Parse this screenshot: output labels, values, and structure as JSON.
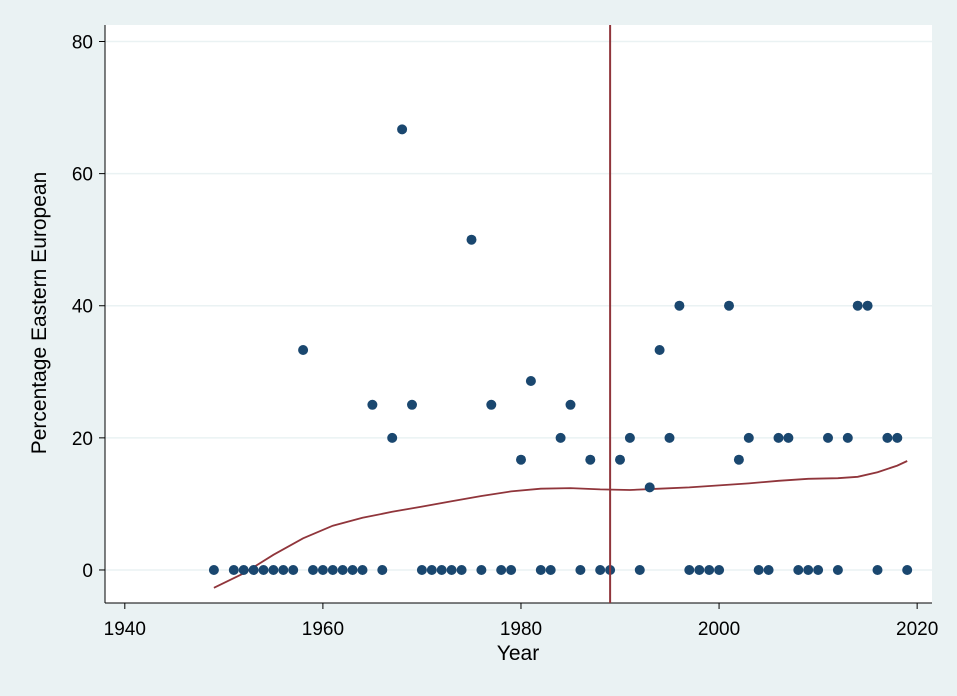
{
  "chart_data": {
    "type": "scatter",
    "title": "",
    "xlabel": "Year",
    "ylabel": "Percentage Eastern European",
    "xlim": [
      1938,
      2021.5
    ],
    "ylim": [
      -5,
      82.5
    ],
    "x_ticks": [
      1940,
      1960,
      1980,
      2000,
      2020
    ],
    "y_ticks": [
      0,
      20,
      40,
      60,
      80
    ],
    "x_tick_labels": [
      "1940",
      "1960",
      "1980",
      "2000",
      "2020"
    ],
    "y_tick_labels": [
      "0",
      "20",
      "40",
      "60",
      "80"
    ],
    "grid": "horizontal",
    "legend": "none",
    "vertical_line_x": 1989,
    "colors": {
      "background": "#eaf2f3",
      "plot_background": "#ffffff",
      "points": "#1a476f",
      "fit_line": "#90353b",
      "reference_line": "#90353b",
      "gridline": "#eaf2f3"
    },
    "series": [
      {
        "type": "scatter",
        "points": [
          [
            1949,
            0
          ],
          [
            1951,
            0
          ],
          [
            1952,
            0
          ],
          [
            1953,
            0
          ],
          [
            1954,
            0
          ],
          [
            1955,
            0
          ],
          [
            1956,
            0
          ],
          [
            1957,
            0
          ],
          [
            1958,
            33.3
          ],
          [
            1959,
            0
          ],
          [
            1960,
            0
          ],
          [
            1961,
            0
          ],
          [
            1962,
            0
          ],
          [
            1963,
            0
          ],
          [
            1964,
            0
          ],
          [
            1965,
            25
          ],
          [
            1966,
            0
          ],
          [
            1967,
            20
          ],
          [
            1968,
            66.7
          ],
          [
            1969,
            25
          ],
          [
            1970,
            0
          ],
          [
            1971,
            0
          ],
          [
            1972,
            0
          ],
          [
            1973,
            0
          ],
          [
            1974,
            0
          ],
          [
            1975,
            50
          ],
          [
            1976,
            0
          ],
          [
            1977,
            25
          ],
          [
            1978,
            0
          ],
          [
            1979,
            0
          ],
          [
            1980,
            16.7
          ],
          [
            1981,
            28.6
          ],
          [
            1982,
            0
          ],
          [
            1983,
            0
          ],
          [
            1984,
            20
          ],
          [
            1985,
            25
          ],
          [
            1986,
            0
          ],
          [
            1987,
            16.7
          ],
          [
            1988,
            0
          ],
          [
            1989,
            0
          ],
          [
            1990,
            16.7
          ],
          [
            1991,
            20
          ],
          [
            1992,
            0
          ],
          [
            1993,
            12.5
          ],
          [
            1994,
            33.3
          ],
          [
            1995,
            20
          ],
          [
            1996,
            40
          ],
          [
            1997,
            0
          ],
          [
            1998,
            0
          ],
          [
            1999,
            0
          ],
          [
            2000,
            0
          ],
          [
            2001,
            40
          ],
          [
            2002,
            16.7
          ],
          [
            2003,
            20
          ],
          [
            2004,
            0
          ],
          [
            2005,
            0
          ],
          [
            2006,
            20
          ],
          [
            2007,
            20
          ],
          [
            2008,
            0
          ],
          [
            2009,
            0
          ],
          [
            2010,
            0
          ],
          [
            2011,
            20
          ],
          [
            2012,
            0
          ],
          [
            2013,
            20
          ],
          [
            2014,
            40
          ],
          [
            2015,
            40
          ],
          [
            2016,
            0
          ],
          [
            2017,
            20
          ],
          [
            2018,
            20
          ],
          [
            2019,
            0
          ]
        ]
      },
      {
        "type": "line",
        "points": [
          [
            1949,
            -2.7
          ],
          [
            1952,
            -0.5
          ],
          [
            1955,
            2.3
          ],
          [
            1958,
            4.8
          ],
          [
            1961,
            6.7
          ],
          [
            1964,
            7.9
          ],
          [
            1967,
            8.8
          ],
          [
            1970,
            9.6
          ],
          [
            1973,
            10.4
          ],
          [
            1976,
            11.2
          ],
          [
            1979,
            11.9
          ],
          [
            1982,
            12.3
          ],
          [
            1985,
            12.4
          ],
          [
            1988,
            12.2
          ],
          [
            1991,
            12.1
          ],
          [
            1994,
            12.3
          ],
          [
            1997,
            12.5
          ],
          [
            2000,
            12.8
          ],
          [
            2003,
            13.1
          ],
          [
            2006,
            13.5
          ],
          [
            2009,
            13.8
          ],
          [
            2012,
            13.9
          ],
          [
            2014,
            14.1
          ],
          [
            2016,
            14.8
          ],
          [
            2018,
            15.8
          ],
          [
            2019,
            16.5
          ]
        ]
      }
    ]
  }
}
